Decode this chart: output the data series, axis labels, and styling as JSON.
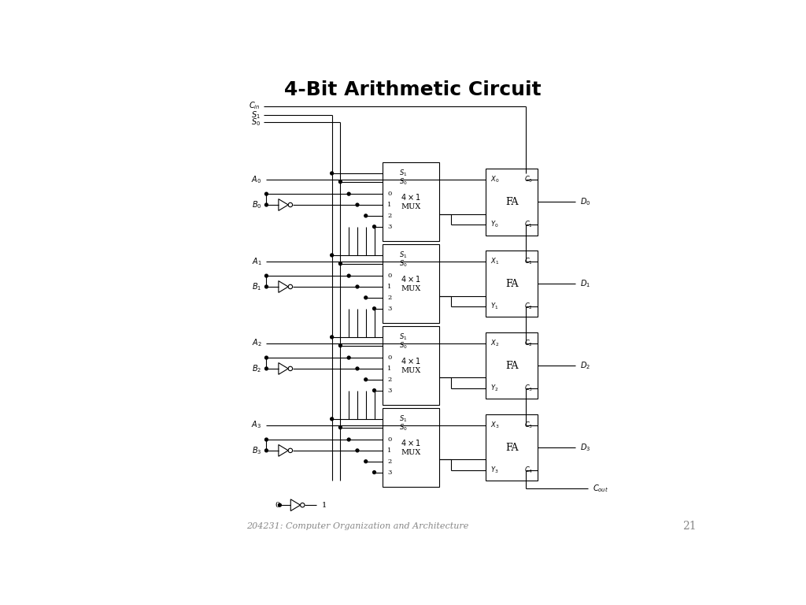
{
  "title": "4-Bit Arithmetic Circuit",
  "subtitle": "204231: Computer Organization and Architecture",
  "page_number": "21",
  "background": "#ffffff",
  "fig_width": 10.24,
  "fig_height": 7.68,
  "lw": 0.8
}
